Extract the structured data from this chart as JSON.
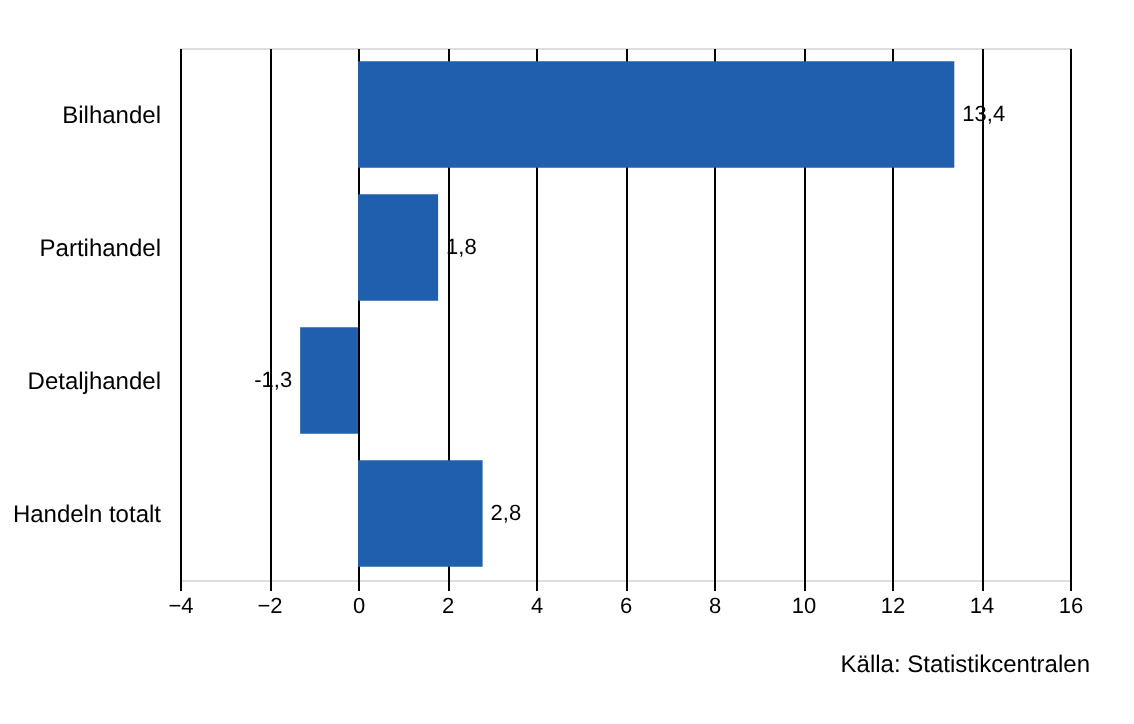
{
  "chart_data": {
    "type": "bar",
    "orientation": "horizontal",
    "categories": [
      "Bilhandel",
      "Partihandel",
      "Detaljhandel",
      "Handeln totalt"
    ],
    "values": [
      13.4,
      1.8,
      -1.3,
      2.8
    ],
    "value_labels": [
      "13,4",
      "1,8",
      "-1,3",
      "2,8"
    ],
    "color": "#1f5fad",
    "xlim": [
      -4,
      16
    ],
    "xticks": [
      -4,
      -2,
      0,
      2,
      4,
      6,
      8,
      10,
      12,
      14,
      16
    ],
    "grid": "x",
    "annotations": [
      "Källa:  Statistikcentralen"
    ]
  }
}
